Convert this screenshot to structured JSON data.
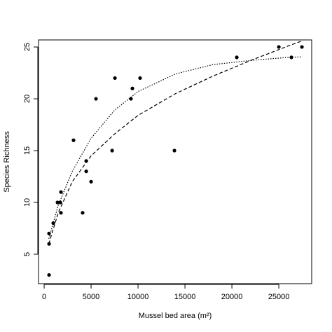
{
  "chart_data": {
    "type": "scatter",
    "x_label": "Mussel bed area (m²)",
    "y_label": "Species Richness",
    "color": "#000000",
    "x": [
      522,
      522,
      522,
      970,
      1420,
      1720,
      1790,
      1790,
      3130,
      4100,
      4480,
      4480,
      5000,
      5520,
      7240,
      7540,
      9250,
      9400,
      10220,
      13880,
      20520,
      25000,
      26340,
      27460
    ],
    "values": [
      3,
      6,
      7,
      8,
      10,
      10,
      11,
      9,
      16,
      9,
      14,
      13,
      12,
      20,
      15,
      22,
      20,
      21,
      22,
      15,
      24,
      25,
      24,
      25
    ],
    "lines": [
      {
        "style": "dashed",
        "x": [
          500,
          1500,
          3000,
          5000,
          7500,
          10000,
          14000,
          18000,
          22000,
          26000,
          27500
        ],
        "values": [
          6.0,
          9.0,
          12.0,
          14.5,
          16.6,
          18.4,
          20.5,
          22.2,
          23.7,
          25.1,
          25.6
        ]
      },
      {
        "style": "dotted",
        "x": [
          500,
          1500,
          3000,
          5000,
          7500,
          10000,
          14000,
          18000,
          22000,
          26000,
          27500
        ],
        "values": [
          6.5,
          9.7,
          13.0,
          16.2,
          18.9,
          20.7,
          22.4,
          23.3,
          23.7,
          24.0,
          24.05
        ]
      }
    ],
    "xlim": [
      -600,
      28500
    ],
    "ylim": [
      2.16,
      25.68
    ],
    "xticks": [
      0,
      5000,
      10000,
      15000,
      20000,
      25000
    ],
    "yticks": [
      5,
      10,
      15,
      20,
      25
    ]
  }
}
